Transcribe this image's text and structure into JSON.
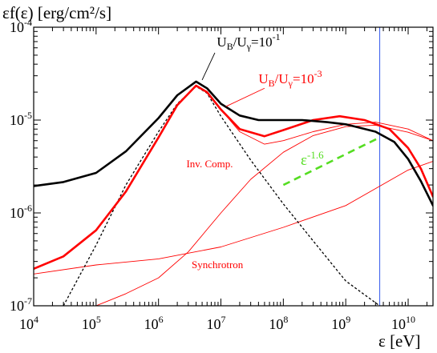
{
  "chart_data": {
    "type": "line",
    "xscale": "log",
    "yscale": "log",
    "xlim": [
      10000,
      25000000000
    ],
    "ylim": [
      1e-07,
      0.0001
    ],
    "xlabel": "ε [eV]",
    "ylabel": "εf(ε) [erg/cm²/s]",
    "x_ticks": [
      10000,
      100000,
      1000000,
      10000000,
      100000000,
      1000000000,
      10000000000
    ],
    "x_tick_labels": [
      {
        "base": "10",
        "exp": "4"
      },
      {
        "base": "10",
        "exp": "5"
      },
      {
        "base": "10",
        "exp": "6"
      },
      {
        "base": "10",
        "exp": "7"
      },
      {
        "base": "10",
        "exp": "8"
      },
      {
        "base": "10",
        "exp": "9"
      },
      {
        "base": "10",
        "exp": "10"
      }
    ],
    "y_ticks": [
      1e-07,
      1e-06,
      1e-05,
      0.0001
    ],
    "y_tick_labels": [
      {
        "base": "10",
        "exp": "-7"
      },
      {
        "base": "10",
        "exp": "-6"
      },
      {
        "base": "10",
        "exp": "-5"
      },
      {
        "base": "10",
        "exp": "-4"
      }
    ],
    "series": [
      {
        "name": "U_B/U_γ=10⁻¹",
        "color": "#000000",
        "width": 2.6,
        "dash": "",
        "x": [
          10000,
          30000,
          100000,
          300000,
          1000000,
          2000000,
          4000000,
          6000000,
          10000000,
          20000000,
          40000000,
          100000000,
          200000000,
          500000000,
          1000000000,
          3000000000,
          6000000000,
          10000000000,
          16000000000,
          25000000000
        ],
        "y": [
          1.95e-06,
          2.15e-06,
          2.7e-06,
          4.6e-06,
          1.05e-05,
          1.85e-05,
          2.6e-05,
          2.2e-05,
          1.5e-05,
          1.12e-05,
          1e-05,
          1e-05,
          1e-05,
          9.5e-06,
          9e-06,
          7.5e-06,
          5.8e-06,
          3.8e-06,
          2.2e-06,
          1.2e-06
        ]
      },
      {
        "name": "U_B/U_γ=10⁻³",
        "color": "#ff0000",
        "width": 2.6,
        "dash": "",
        "x": [
          10000,
          30000,
          100000,
          300000,
          1000000,
          2000000,
          4000000,
          6000000,
          10000000,
          20000000,
          50000000,
          100000000,
          300000000,
          800000000,
          2000000000,
          5000000000,
          10000000000,
          16000000000,
          25000000000
        ],
        "y": [
          2.5e-07,
          3.4e-07,
          6.5e-07,
          1.7e-06,
          6.5e-06,
          1.45e-05,
          2.35e-05,
          2e-05,
          1.3e-05,
          8e-06,
          6.7e-06,
          7.8e-06,
          1e-05,
          1.1e-05,
          1e-05,
          8e-06,
          5e-06,
          3e-06,
          1.5e-06
        ]
      },
      {
        "name": "Inv. Comp.",
        "color": "#ff0000",
        "width": 0.9,
        "dash": "",
        "x": [
          100000,
          300000,
          1000000,
          3000000,
          10000000,
          30000000,
          100000000,
          300000000,
          1000000000,
          3000000000,
          10000000000,
          25000000000
        ],
        "y": [
          1e-07,
          1.35e-07,
          2e-07,
          3.8e-07,
          1e-06,
          2.3e-06,
          4.5e-06,
          6.8e-06,
          8.5e-06,
          8.8e-06,
          7.4e-06,
          6e-06
        ]
      },
      {
        "name": "Synchrotron",
        "color": "#ff0000",
        "width": 0.9,
        "dash": "",
        "x": [
          10000,
          100000,
          1000000,
          10000000,
          100000000,
          1000000000,
          10000000000,
          25000000000
        ],
        "y": [
          2.2e-07,
          2.75e-07,
          3.2e-07,
          4.3e-07,
          7e-07,
          1.2e-06,
          2.9e-06,
          3.6e-06
        ]
      },
      {
        "name": "",
        "color": "#ff0000",
        "width": 0.9,
        "dash": "",
        "x": [
          10000,
          30000,
          100000,
          300000,
          1000000,
          2000000,
          4000000,
          6000000,
          10000000,
          20000000,
          50000000,
          100000000,
          300000000,
          1000000000,
          3000000000,
          10000000000,
          25000000000
        ],
        "y": [
          2.5e-07,
          3.4e-07,
          6.5e-07,
          1.7e-06,
          6.5e-06,
          1.45e-05,
          2.35e-05,
          2e-05,
          1.3e-05,
          7.5e-06,
          5.5e-06,
          6e-06,
          7.5e-06,
          9e-06,
          9.5e-06,
          8e-06,
          6e-06
        ]
      },
      {
        "name": "",
        "color": "#000000",
        "width": 1.3,
        "dash": "3,2.5",
        "x": [
          30000,
          100000,
          300000,
          1000000,
          2000000,
          4000000,
          6000000,
          10000000,
          30000000,
          100000000,
          300000000,
          1000000000,
          3500000000
        ],
        "y": [
          1e-07,
          4.5e-07,
          2e-06,
          7.5e-06,
          1.5e-05,
          2.3e-05,
          1.95e-05,
          1.1e-05,
          3.7e-06,
          1.25e-06,
          5e-07,
          1.85e-07,
          1e-07
        ]
      },
      {
        "name": "",
        "color": "#55dd22",
        "width": 2.6,
        "dash": "9,6",
        "x": [
          100000000,
          3500000000
        ],
        "y": [
          2e-06,
          6.5e-06
        ]
      }
    ],
    "vline": {
      "x": 3500000000,
      "color": "#4466ee"
    },
    "annotations": [
      {
        "base": "U",
        "s1": "B",
        "mid": "/U",
        "s2": "γ",
        "tail": "=10",
        "sup": "-1",
        "color": "#000000",
        "lx": 8600000,
        "ly": 6.2e-05,
        "size": 17
      },
      {
        "base": "U",
        "s1": "B",
        "mid": "/U",
        "s2": "γ",
        "tail": "=10",
        "sup": "-3",
        "color": "#ff0000",
        "lx": 40000000,
        "ly": 2.5e-05,
        "size": 17
      },
      {
        "base": "ε",
        "s1": "",
        "mid": "",
        "s2": "",
        "tail": "",
        "sup": "-1.6",
        "color": "#55dd22",
        "lx": 190000000,
        "ly": 3.3e-06,
        "size": 19
      },
      {
        "base": "Inv. Comp.",
        "s1": "",
        "mid": "",
        "s2": "",
        "tail": "",
        "sup": "",
        "color": "#ff0000",
        "lx": 2800000,
        "ly": 3.1e-06,
        "size": 13
      },
      {
        "base": "Synchrotron",
        "s1": "",
        "mid": "",
        "s2": "",
        "tail": "",
        "sup": "",
        "color": "#ff0000",
        "lx": 3400000,
        "ly": 2.55e-07,
        "size": 13
      }
    ],
    "annotation_lines": [
      {
        "x1": 8000000,
        "y1": 5.3e-05,
        "x2": 5000000,
        "y2": 2.7e-05,
        "color": "#000000"
      },
      {
        "x1": 50000000,
        "y1": 2.2e-05,
        "x2": 12000000,
        "y2": 1.4e-05,
        "color": "#ff0000"
      }
    ]
  }
}
